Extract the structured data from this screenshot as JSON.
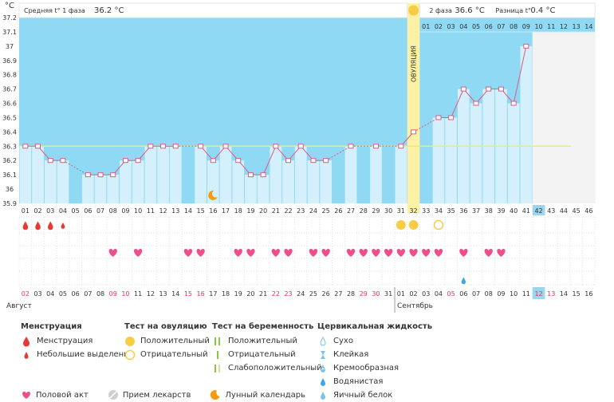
{
  "unit_label": "°C",
  "header": {
    "phase1_label": "Средняя t° 1 фаза",
    "phase1_value": "36.2 °C",
    "phase2_label": "2 фаза",
    "phase2_value": "36.6 °C",
    "diff_label": "Разница t°",
    "diff_value": "0.4 °C"
  },
  "ovulation_label": "ОВУЛЯЦИЯ",
  "months": {
    "first": "Август",
    "second": "Сентябрь"
  },
  "colors": {
    "sky": "#8fd9f5",
    "bar": "#d4f0fc",
    "bar_border": "#9ad6ef",
    "line": "#e05a7f",
    "cover": "#f3f3f3",
    "ovulation": "#fdf1a6",
    "red_date": "#e0364e",
    "heart": "#ec4f8c",
    "drop": "#e53935",
    "sun": "#f8cd46",
    "highlight": "#9ad6ef"
  },
  "phase2_day_labels": [
    "01",
    "02",
    "03",
    "04",
    "05",
    "06",
    "07",
    "08",
    "09",
    "10",
    "11",
    "12",
    "13",
    "14"
  ],
  "legend": {
    "menstruation": {
      "title": "Менструация",
      "items": [
        "Менструация",
        "Небольшие выделения"
      ]
    },
    "ovulation_test": {
      "title": "Тест на овуляцию",
      "items": [
        "Положительный",
        "Отрицательный"
      ]
    },
    "pregnancy_test": {
      "title": "Тест на беременность",
      "items": [
        "Положительный",
        "Отрицательный",
        "Слабоположительный"
      ]
    },
    "cervical": {
      "title": "Цервикальная жидкость",
      "items": [
        "Сухо",
        "Клейкая",
        "Кремообразная",
        "Водянистая",
        "Яичный белок"
      ]
    },
    "bottom": {
      "items": [
        "Половой акт",
        "Прием лекарств",
        "Лунный календарь"
      ]
    }
  },
  "chart_data": {
    "type": "bar",
    "xlabel": "",
    "ylabel": "°C",
    "ylim": [
      35.9,
      37.2
    ],
    "yticks": [
      "35.9",
      "36",
      "36.1",
      "36.2",
      "36.3",
      "36.4",
      "36.5",
      "36.6",
      "36.7",
      "36.8",
      "36.9",
      "37",
      "37.1",
      "37.2"
    ],
    "cycle_days": [
      "01",
      "02",
      "03",
      "04",
      "05",
      "06",
      "07",
      "08",
      "09",
      "10",
      "11",
      "12",
      "13",
      "14",
      "15",
      "16",
      "17",
      "18",
      "19",
      "20",
      "21",
      "22",
      "23",
      "24",
      "25",
      "26",
      "27",
      "28",
      "29",
      "30",
      "31",
      "32",
      "33",
      "34",
      "35",
      "36",
      "37",
      "38",
      "39",
      "40",
      "41",
      "42",
      "43",
      "44",
      "45",
      "46"
    ],
    "dates": [
      "02",
      "03",
      "04",
      "05",
      "06",
      "07",
      "08",
      "09",
      "10",
      "11",
      "12",
      "13",
      "14",
      "15",
      "16",
      "17",
      "18",
      "19",
      "20",
      "21",
      "22",
      "23",
      "24",
      "25",
      "26",
      "27",
      "28",
      "29",
      "30",
      "31",
      "01",
      "02",
      "03",
      "04",
      "05",
      "06",
      "07",
      "08",
      "09",
      "10",
      "11",
      "12",
      "13",
      "14",
      "15",
      "16"
    ],
    "weekend_indices": [
      0,
      7,
      8,
      13,
      14,
      20,
      21,
      27,
      28,
      34,
      41,
      42
    ],
    "temperatures": [
      36.3,
      36.3,
      36.2,
      36.2,
      null,
      36.1,
      36.1,
      36.1,
      36.2,
      36.2,
      36.3,
      36.3,
      36.3,
      null,
      36.3,
      36.2,
      36.3,
      36.2,
      36.1,
      36.1,
      36.3,
      36.2,
      36.3,
      36.2,
      36.2,
      null,
      36.3,
      null,
      36.3,
      null,
      36.3,
      36.4,
      null,
      36.5,
      36.5,
      36.7,
      36.6,
      36.7,
      36.7,
      36.6,
      37.0,
      null,
      null,
      null,
      null,
      null
    ],
    "coverline": 36.3,
    "ovulation_day_index": 31,
    "current_day_index": 41,
    "menstruation_indices": [
      0,
      1,
      2
    ],
    "light_bleeding_indices": [
      3
    ],
    "ovulation_test_positive_indices": [
      30,
      31
    ],
    "ovulation_test_negative_indices": [
      33
    ],
    "intercourse_indices": [
      7,
      9,
      13,
      14,
      17,
      18,
      20,
      21,
      23,
      24,
      26,
      27,
      28,
      29,
      30,
      31,
      32,
      33,
      35,
      37,
      38
    ],
    "moon_indices": [
      15
    ],
    "cervical_watery_indices": [
      35
    ]
  }
}
